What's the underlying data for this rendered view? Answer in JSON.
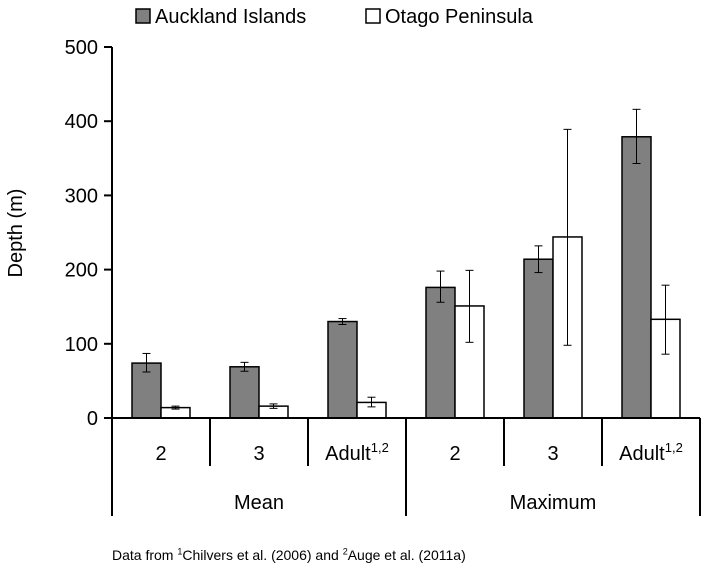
{
  "chart_data": {
    "type": "bar",
    "title": "",
    "xlabel": "",
    "ylabel": "Depth (m)",
    "ylim": [
      0,
      500
    ],
    "yticks": [
      0,
      100,
      200,
      300,
      400,
      500
    ],
    "grid": false,
    "legend_position": "top",
    "groups": [
      {
        "label": "Mean",
        "categories": [
          "2",
          "3",
          "Adult"
        ]
      },
      {
        "label": "Maximum",
        "categories": [
          "2",
          "3",
          "Adult"
        ]
      }
    ],
    "category_superscripts": [
      "",
      "",
      "1,2",
      "",
      "",
      "1,2"
    ],
    "series": [
      {
        "name": "Auckland Islands",
        "color": "#808080",
        "values": [
          74,
          69,
          130,
          176,
          214,
          379
        ],
        "error_low": [
          62,
          63,
          126,
          156,
          196,
          343
        ],
        "error_high": [
          87,
          75,
          134,
          198,
          232,
          416
        ]
      },
      {
        "name": "Otago Peninsula",
        "color": "#ffffff",
        "values": [
          14,
          16,
          21,
          151,
          244,
          133
        ],
        "error_low": [
          12,
          13,
          15,
          102,
          98,
          86
        ],
        "error_high": [
          16,
          19,
          28,
          199,
          389,
          179
        ]
      }
    ]
  },
  "caption": {
    "prefix": "Data from ",
    "ref1_mark": "1",
    "ref1_text": "Chilvers et al. (2006) and ",
    "ref2_mark": "2",
    "ref2_text": "Auge et al. (2011a)"
  }
}
